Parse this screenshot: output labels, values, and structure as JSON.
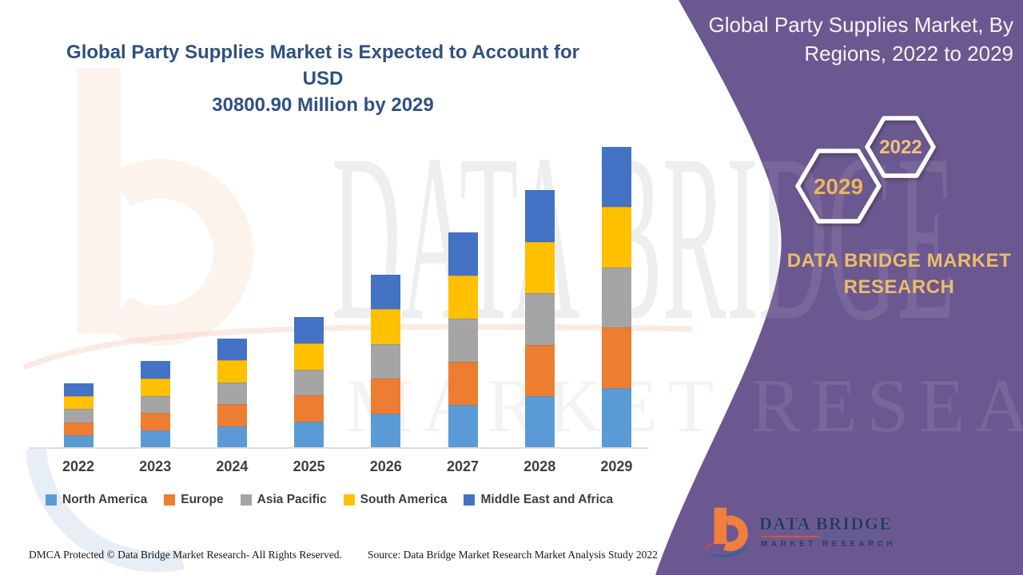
{
  "title": {
    "line1": "Global Party Supplies Market is Expected to Account for USD",
    "line2": "30800.90 Million by 2029"
  },
  "side_panel": {
    "heading_line1": "Global Party Supplies Market, By",
    "heading_line2": "Regions, 2022 to 2029",
    "hexagon_large_year": "2029",
    "hexagon_small_year": "2022",
    "brand_line1": "DATA BRIDGE MARKET",
    "brand_line2": "RESEARCH"
  },
  "chart_data": {
    "type": "bar",
    "stacked": true,
    "title": "Global Party Supplies Market is Expected to Account for USD 30800.90 Million by 2029",
    "unit": "USD Million",
    "categories": [
      "2022",
      "2023",
      "2024",
      "2025",
      "2026",
      "2027",
      "2028",
      "2029"
    ],
    "series": [
      {
        "name": "North America",
        "color": "#5b9bd5",
        "values": [
          1324.0,
          1781.0,
          2239.0,
          2680.0,
          3546.0,
          4412.0,
          5278.0,
          6160.18
        ]
      },
      {
        "name": "Europe",
        "color": "#ed7d31",
        "values": [
          1324.0,
          1781.0,
          2239.0,
          2680.0,
          3546.0,
          4412.0,
          5278.0,
          6160.18
        ]
      },
      {
        "name": "Asia Pacific",
        "color": "#a5a5a5",
        "values": [
          1324.0,
          1781.0,
          2239.0,
          2680.0,
          3546.0,
          4412.0,
          5278.0,
          6160.18
        ]
      },
      {
        "name": "South America",
        "color": "#ffc000",
        "values": [
          1324.0,
          1781.0,
          2239.0,
          2680.0,
          3546.0,
          4412.0,
          5278.0,
          6160.18
        ]
      },
      {
        "name": "Middle East and Africa",
        "color": "#4472c4",
        "values": [
          1324.0,
          1781.0,
          2239.0,
          2680.0,
          3546.0,
          4412.0,
          5278.0,
          6160.18
        ]
      }
    ],
    "totals": [
      6620.0,
      8905.0,
      11195.0,
      13400.0,
      17730.0,
      22060.0,
      26390.0,
      30800.9
    ],
    "ylim": [
      0,
      32000
    ],
    "gridlines": false,
    "legend_position": "bottom"
  },
  "footer": {
    "left": "DMCA Protected © Data Bridge Market Research- All Rights Reserved.",
    "right": "Source: Data Bridge Market Research Market Analysis Study 2022"
  },
  "logo": {
    "name": "DATA BRIDGE",
    "tagline": "MARKET RESEARCH"
  },
  "watermark": {
    "big_text": "DATA BRIDGE",
    "sub_text": "MARKET RESEARCH"
  },
  "colors": {
    "panel_purple": "#6c5890",
    "accent_gold": "#e9bd69",
    "title_blue": "#2f517f",
    "axis_label": "#3f3f3f"
  }
}
